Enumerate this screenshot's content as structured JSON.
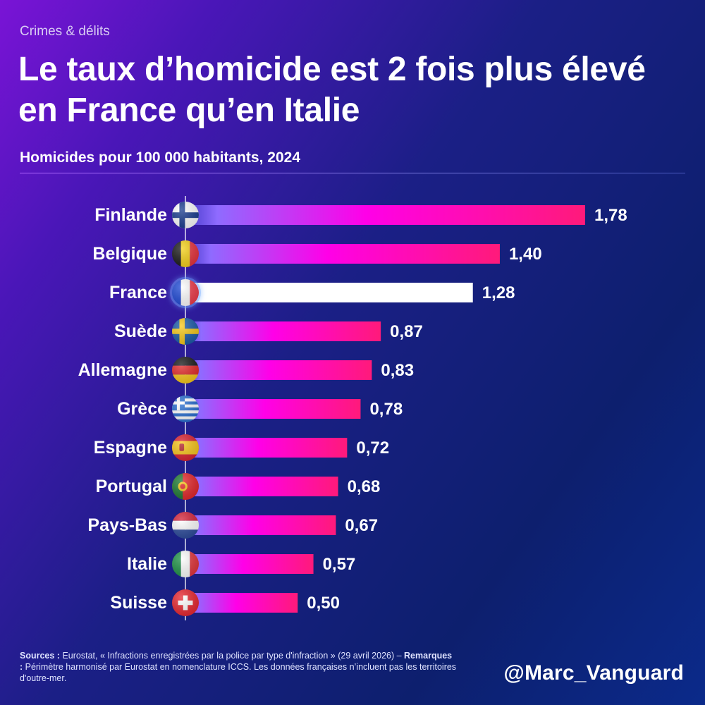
{
  "kicker": "Crimes & délits",
  "title": "Le taux d’homicide est 2 fois plus élevé en France qu’en Italie",
  "subtitle": "Homicides pour 100 000 habitants, 2024",
  "footnote": {
    "sources_label": "Sources :",
    "sources_text": " Eurostat, « Infractions enregistrées par la police par type d'infraction » (29 avril 2026) – ",
    "remarks_label": "Remarques :",
    "remarks_text": " Périmètre harmonisé par Eurostat en nomenclature ICCS. Les données françaises n’incluent pas les territoires d'outre-mer."
  },
  "handle": "@Marc_Vanguard",
  "colors": {
    "bar_start": "#7f6bff",
    "bar_mid": "#ff00e8",
    "bar_end": "#ff1a7a",
    "highlight_bar": "#ffffff",
    "background_dark": "#0d1f6e"
  },
  "chart_data": {
    "type": "bar",
    "orientation": "horizontal",
    "title": "Homicides pour 100 000 habitants, 2024",
    "categories": [
      "Finlande",
      "Belgique",
      "France",
      "Suède",
      "Allemagne",
      "Grèce",
      "Espagne",
      "Portugal",
      "Pays-Bas",
      "Italie",
      "Suisse"
    ],
    "values": [
      1.78,
      1.4,
      1.28,
      0.87,
      0.83,
      0.78,
      0.72,
      0.68,
      0.67,
      0.57,
      0.5
    ],
    "value_labels": [
      "1,78",
      "1,40",
      "1,28",
      "0,87",
      "0,83",
      "0,78",
      "0,72",
      "0,68",
      "0,67",
      "0,57",
      "0,50"
    ],
    "highlight": "France",
    "flag_icons": [
      "flag-finland-icon",
      "flag-belgium-icon",
      "flag-france-icon",
      "flag-sweden-icon",
      "flag-germany-icon",
      "flag-greece-icon",
      "flag-spain-icon",
      "flag-portugal-icon",
      "flag-netherlands-icon",
      "flag-italy-icon",
      "flag-switzerland-icon"
    ],
    "xlim": [
      0,
      1.78
    ],
    "grid": false,
    "legend": "none"
  }
}
